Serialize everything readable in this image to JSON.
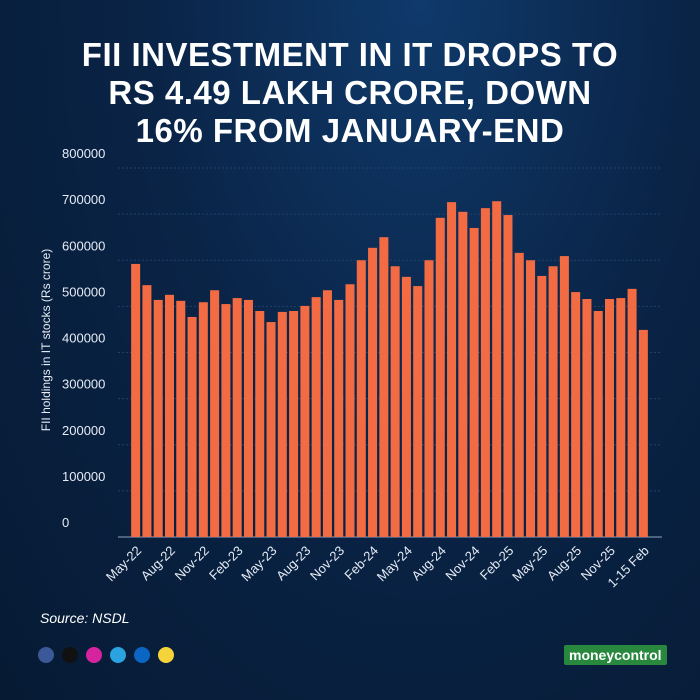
{
  "chart_data": {
    "type": "bar",
    "title": "FII INVESTMENT IN IT DROPS TO RS 4.49 LAKH CRORE, DOWN 16% FROM JANUARY-END",
    "y_label": "FII holdings in IT stocks (Rs crore)",
    "categories": [
      "May-22",
      null,
      null,
      "Aug-22",
      null,
      null,
      "Nov-22",
      null,
      null,
      "Feb-23",
      null,
      null,
      "May-23",
      null,
      null,
      "Aug-23",
      null,
      null,
      "Nov-23",
      null,
      null,
      "Feb-24",
      null,
      null,
      "May-24",
      null,
      null,
      "Aug-24",
      null,
      null,
      "Nov-24",
      null,
      null,
      "Feb-25",
      null,
      null,
      "May-25",
      null,
      null,
      "Aug-25",
      null,
      null,
      "Nov-25",
      null,
      null,
      "1-15 Feb"
    ],
    "values": [
      592000,
      546000,
      514000,
      525000,
      512000,
      477000,
      509000,
      535000,
      505000,
      518000,
      514000,
      490000,
      466000,
      488000,
      490000,
      501000,
      520000,
      535000,
      514000,
      548000,
      600000,
      627000,
      650000,
      587000,
      564000,
      544000,
      600000,
      692000,
      726000,
      705000,
      670000,
      713000,
      728000,
      698000,
      616000,
      600000,
      566000,
      587000,
      609000,
      531000,
      516000,
      490000,
      516000,
      518000,
      538000,
      449000
    ],
    "color": "#f26b43",
    "ylim": [
      0,
      800000
    ],
    "yticks": [
      0,
      100000,
      200000,
      300000,
      400000,
      500000,
      600000,
      700000,
      800000
    ],
    "grid": true
  },
  "source": "Source: NSDL",
  "brand": "moneycontrol"
}
